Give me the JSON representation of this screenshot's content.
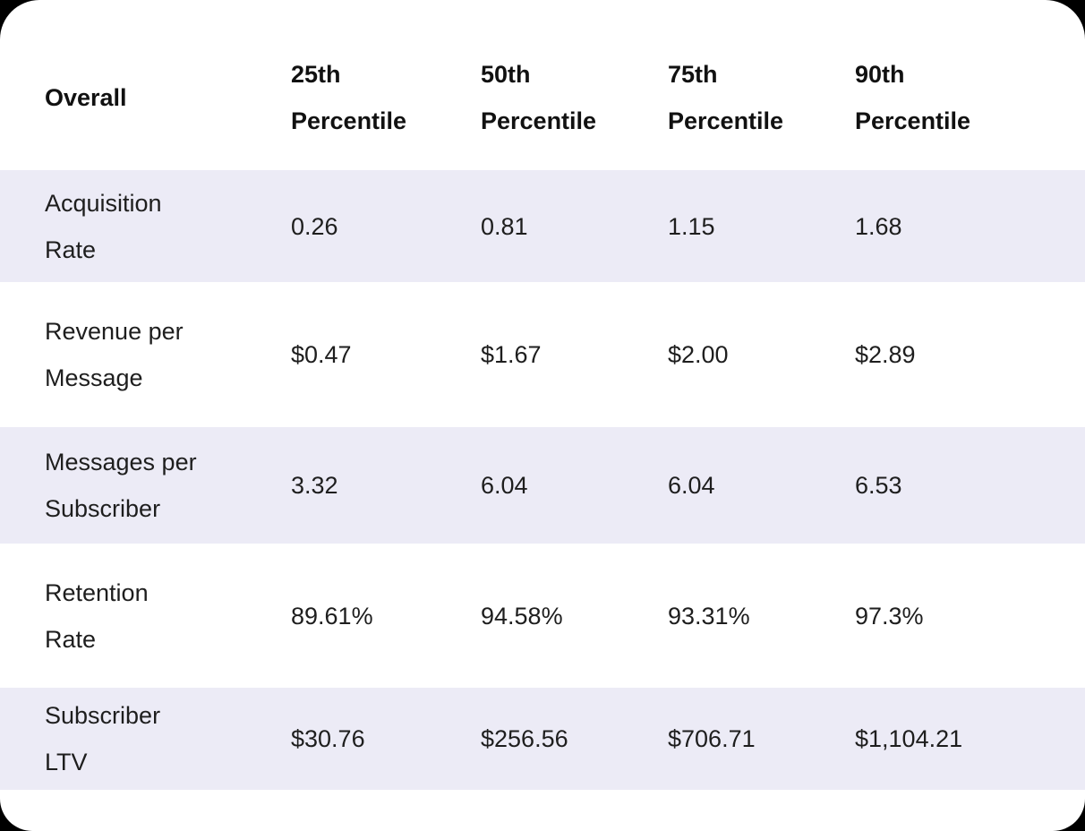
{
  "table": {
    "header": {
      "label": "Overall",
      "columns": [
        "25th Percentile",
        "50th Percentile",
        "75th Percentile",
        "90th Percentile"
      ]
    },
    "rows": [
      {
        "label": "Acquisition Rate",
        "values": [
          "0.26",
          "0.81",
          "1.15",
          "1.68"
        ]
      },
      {
        "label": "Revenue per Message",
        "values": [
          "$0.47",
          "$1.67",
          "$2.00",
          "$2.89"
        ]
      },
      {
        "label": "Messages per Subscriber",
        "values": [
          "3.32",
          "6.04",
          "6.04",
          "6.53"
        ]
      },
      {
        "label": "Retention Rate",
        "values": [
          "89.61%",
          "94.58%",
          "93.31%",
          "97.3%"
        ]
      },
      {
        "label": "Subscriber LTV",
        "values": [
          "$30.76",
          "$256.56",
          "$706.71",
          "$1,104.21"
        ]
      }
    ],
    "colors": {
      "page_bg": "#000000",
      "card_bg": "#ffffff",
      "stripe": "#ECEBF6",
      "text": "#1e1e1e",
      "header_text": "#111111"
    }
  }
}
